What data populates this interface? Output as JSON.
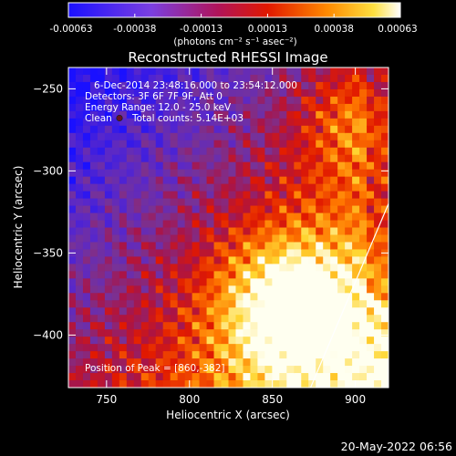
{
  "chart_data": {
    "type": "heatmap",
    "title": "Reconstructed RHESSI Image",
    "xlabel": "Heliocentric X (arcsec)",
    "ylabel": "Heliocentric Y (arcsec)",
    "xlim": [
      727,
      920
    ],
    "ylim": [
      -432,
      -237
    ],
    "x_ticks": [
      750,
      800,
      850,
      900
    ],
    "y_ticks": [
      -250,
      -300,
      -350,
      -400
    ],
    "colorbar": {
      "ticks": [
        "-0.00063",
        "-0.00038",
        "-0.00013",
        "0.00013",
        "0.00038",
        "0.00063"
      ],
      "unit_label": "(photons cm⁻² s⁻¹ asec⁻²)",
      "range": [
        -0.00063,
        0.00063
      ]
    },
    "annotations": [
      "6-Dec-2014 23:48:16.000 to 23:54:12.000",
      "Detectors: 3F 6F 7F 9F, Att 0",
      "Energy Range: 12.0 - 25.0 keV",
      "Clean",
      "Total counts: 5.14E+03"
    ],
    "peak_label": "Position of Peak = [860,-382]",
    "peak": [
      860,
      -382
    ],
    "limb_line": [
      [
        873,
        -432
      ],
      [
        920,
        -320
      ]
    ]
  },
  "footer": {
    "timestamp": "20-May-2022 06:56"
  },
  "colors": {
    "background": "#000000",
    "text": "#ffffff",
    "limb": "#ffffff"
  }
}
